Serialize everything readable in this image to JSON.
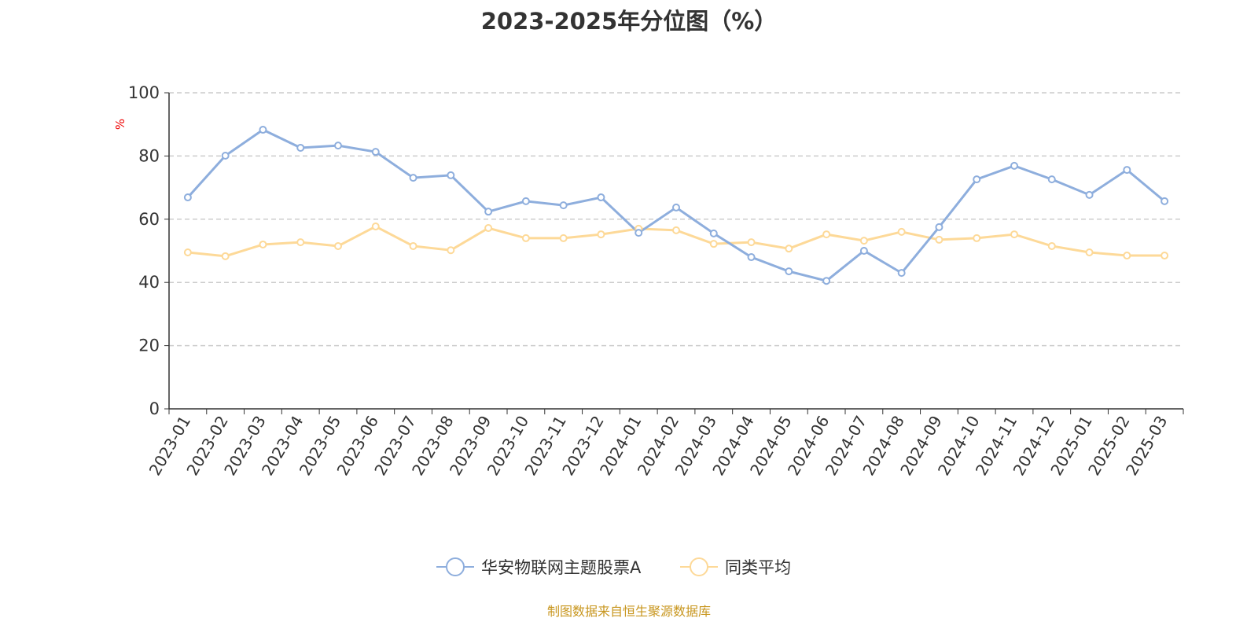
{
  "chart_data": {
    "type": "line",
    "title": "2023-2025年分位图（%）",
    "ylabel": "%",
    "ylim": [
      0,
      100
    ],
    "yticks": [
      0,
      20,
      40,
      60,
      80,
      100
    ],
    "grid": true,
    "legend_position": "bottom-center",
    "categories": [
      "2023-01",
      "2023-02",
      "2023-03",
      "2023-04",
      "2023-05",
      "2023-06",
      "2023-07",
      "2023-08",
      "2023-09",
      "2023-10",
      "2023-11",
      "2023-12",
      "2024-01",
      "2024-02",
      "2024-03",
      "2024-04",
      "2024-05",
      "2024-06",
      "2024-07",
      "2024-08",
      "2024-09",
      "2024-10",
      "2024-11",
      "2024-12",
      "2025-01",
      "2025-02",
      "2025-03"
    ],
    "series": [
      {
        "name": "华安物联网主题股票A",
        "color": "#8eaedd",
        "values": [
          66.9,
          80.1,
          88.3,
          82.6,
          83.3,
          81.3,
          73.1,
          73.9,
          62.4,
          65.7,
          64.4,
          66.9,
          55.7,
          63.7,
          55.5,
          48.0,
          43.5,
          40.5,
          50.0,
          43.0,
          57.5,
          72.6,
          76.9,
          72.6,
          67.7,
          75.6,
          65.7
        ]
      },
      {
        "name": "同类平均",
        "color": "#fdd998",
        "values": [
          49.5,
          48.3,
          52.0,
          52.7,
          51.5,
          57.7,
          51.5,
          50.2,
          57.2,
          54.0,
          54.0,
          55.2,
          57.0,
          56.5,
          52.2,
          52.7,
          50.7,
          55.2,
          53.2,
          56.0,
          53.5,
          54.0,
          55.2,
          51.5,
          49.5,
          48.5,
          48.5
        ]
      }
    ]
  },
  "footer": "制图数据来自恒生聚源数据库"
}
